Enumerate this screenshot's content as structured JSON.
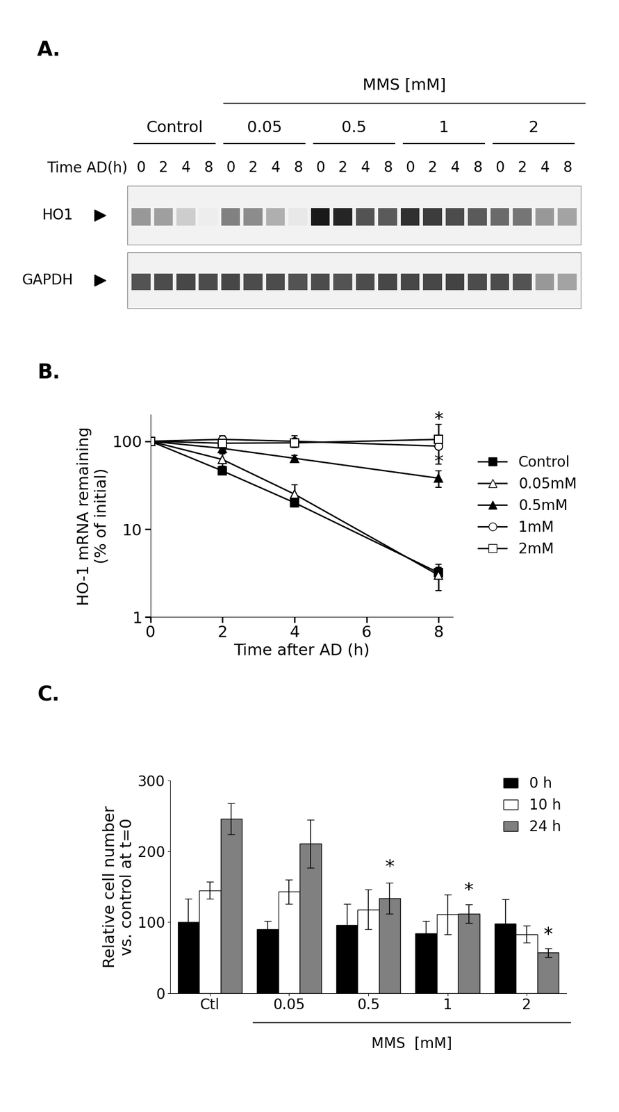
{
  "chart_data": [
    {
      "type": "blot",
      "panel_label": "A.",
      "group_title": "MMS [mM]",
      "lane_axis_label": "Time AD(h)",
      "groups": [
        {
          "label": "Control",
          "lanes": [
            0,
            2,
            4,
            8
          ]
        },
        {
          "label": "0.05",
          "lanes": [
            0,
            2,
            4,
            8
          ]
        },
        {
          "label": "0.5",
          "lanes": [
            0,
            2,
            4,
            8
          ]
        },
        {
          "label": "1",
          "lanes": [
            0,
            2,
            4,
            8
          ]
        },
        {
          "label": "2",
          "lanes": [
            0,
            2,
            4,
            8
          ]
        }
      ],
      "rows": [
        {
          "name": "HO1",
          "intensity": [
            0.45,
            0.42,
            0.22,
            0.08,
            0.55,
            0.5,
            0.35,
            0.1,
            1.0,
            0.95,
            0.75,
            0.72,
            0.9,
            0.85,
            0.78,
            0.72,
            0.65,
            0.6,
            0.45,
            0.4
          ]
        },
        {
          "name": "GAPDH",
          "intensity": [
            0.75,
            0.78,
            0.8,
            0.78,
            0.8,
            0.78,
            0.78,
            0.75,
            0.78,
            0.75,
            0.78,
            0.8,
            0.8,
            0.8,
            0.82,
            0.78,
            0.78,
            0.75,
            0.45,
            0.4
          ]
        }
      ]
    },
    {
      "type": "line",
      "panel_label": "B.",
      "x_label": "Time after AD (h)",
      "y_label": "HO-1 mRNA remaining\n(% of initial)",
      "log": "y",
      "x": [
        0,
        2,
        4,
        8
      ],
      "xlim": [
        0,
        8.4
      ],
      "xticks": [
        0,
        2,
        4,
        6,
        8
      ],
      "ylim": [
        1,
        200
      ],
      "yticks": [
        1,
        10,
        100
      ],
      "legend": "right",
      "series": [
        {
          "name": "Control",
          "color": "#000000",
          "marker": "filled_square",
          "values": [
            100,
            46,
            20,
            3.2
          ],
          "errors": [
            0,
            4,
            2,
            0.5
          ]
        },
        {
          "name": "0.05mM",
          "color": "#000000",
          "marker": "open_triangle",
          "values": [
            100,
            62,
            25,
            3
          ],
          "errors": [
            0,
            10,
            7,
            1
          ]
        },
        {
          "name": "0.5mM",
          "color": "#000000",
          "marker": "filled_triangle",
          "values": [
            100,
            83,
            64,
            38
          ],
          "errors": [
            0,
            5,
            5,
            8
          ]
        },
        {
          "name": "1mM",
          "color": "#000000",
          "marker": "open_circle",
          "values": [
            100,
            105,
            100,
            88
          ],
          "errors": [
            0,
            10,
            15,
            5
          ]
        },
        {
          "name": "2mM",
          "color": "#000000",
          "marker": "open_square",
          "values": [
            100,
            95,
            96,
            105
          ],
          "errors": [
            0,
            5,
            10,
            50
          ]
        }
      ],
      "annotations": [
        {
          "text": "*",
          "x": 8,
          "y": 175
        },
        {
          "text": "*",
          "x": 8,
          "y": 58
        }
      ]
    },
    {
      "type": "bar",
      "panel_label": "C.",
      "y_label": "Relative cell number\nvs. control at t=0",
      "group_label": "MMS  [mM]",
      "categories": [
        "Ctl",
        "0.05",
        "0.5",
        "1",
        "2"
      ],
      "ylim": [
        0,
        300
      ],
      "yticks": [
        0,
        100,
        200,
        300
      ],
      "legend": "upper right",
      "series": [
        {
          "name": "0 h",
          "color": "#000000",
          "values": [
            100,
            90,
            96,
            84,
            98
          ],
          "errors": [
            33,
            12,
            30,
            18,
            34
          ]
        },
        {
          "name": "10 h",
          "color": "#ffffff",
          "values": [
            145,
            143,
            118,
            111,
            83
          ],
          "errors": [
            12,
            17,
            28,
            28,
            12
          ]
        },
        {
          "name": "24 h",
          "color": "#808080",
          "values": [
            246,
            211,
            134,
            112,
            57
          ],
          "errors": [
            22,
            34,
            22,
            13,
            6
          ]
        }
      ],
      "annotations": [
        {
          "text": "*",
          "category": "0.5",
          "y": 165
        },
        {
          "text": "*",
          "category": "1",
          "y": 132
        },
        {
          "text": "*",
          "category": "2",
          "y": 70
        }
      ]
    }
  ]
}
